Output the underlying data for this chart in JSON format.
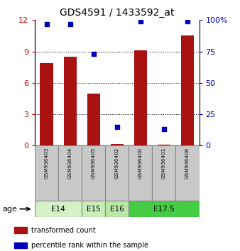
{
  "title": "GDS4591 / 1433592_at",
  "samples": [
    "GSM936403",
    "GSM936404",
    "GSM936405",
    "GSM936402",
    "GSM936400",
    "GSM936401",
    "GSM936406"
  ],
  "red_values": [
    7.9,
    8.5,
    5.0,
    0.15,
    9.1,
    0.1,
    10.5
  ],
  "blue_values_pct": [
    97,
    97,
    73,
    15,
    99,
    13,
    99
  ],
  "age_groups": [
    {
      "label": "E14",
      "start": 0,
      "end": 2,
      "color": "#d4f0c4"
    },
    {
      "label": "E15",
      "start": 2,
      "end": 3,
      "color": "#c8edb8"
    },
    {
      "label": "E16",
      "start": 3,
      "end": 4,
      "color": "#b8e8a8"
    },
    {
      "label": "E17.5",
      "start": 4,
      "end": 7,
      "color": "#44cc44"
    }
  ],
  "ylim_left": [
    0,
    12
  ],
  "ylim_right": [
    0,
    100
  ],
  "yticks_left": [
    0,
    3,
    6,
    9,
    12
  ],
  "yticks_right": [
    0,
    25,
    50,
    75,
    100
  ],
  "left_color": "#cc0000",
  "right_color": "#0000bb",
  "bar_color": "#aa1111",
  "dot_color": "#0000bb",
  "legend_red_label": "transformed count",
  "legend_blue_label": "percentile rank within the sample",
  "sample_box_color": "#c8c8c8",
  "sample_box_edge": "#888888",
  "grid_yticks": [
    3,
    6,
    9
  ]
}
